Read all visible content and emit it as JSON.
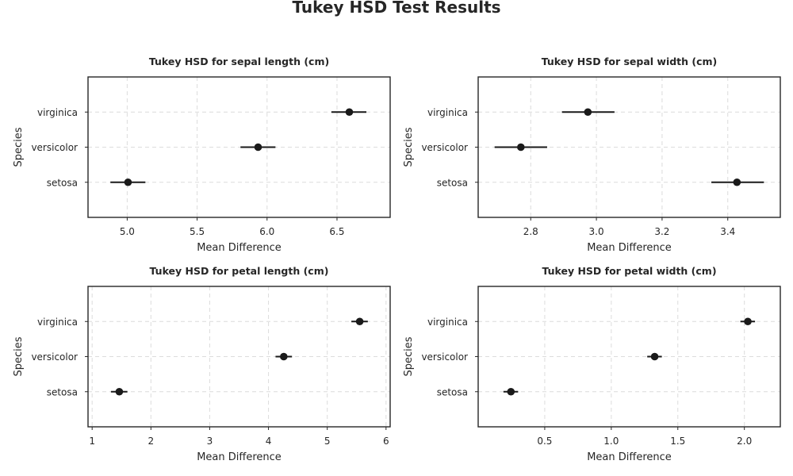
{
  "figure_title": "Tukey HSD Test Results",
  "chart_data": [
    {
      "type": "scatter",
      "title": "Tukey HSD for sepal length (cm)",
      "xlabel": "Mean Difference",
      "ylabel": "Species",
      "categories": [
        "setosa",
        "versicolor",
        "virginica"
      ],
      "means": [
        5.006,
        5.936,
        6.588
      ],
      "ci_low": [
        4.88,
        5.81,
        6.46
      ],
      "ci_high": [
        5.13,
        6.06,
        6.71
      ],
      "xlim": [
        4.72,
        6.88
      ],
      "xticks": [
        5.0,
        5.5,
        6.0,
        6.5
      ],
      "xtick_labels": [
        "5.0",
        "5.5",
        "6.0",
        "6.5"
      ],
      "grid": true
    },
    {
      "type": "scatter",
      "title": "Tukey HSD for sepal width (cm)",
      "xlabel": "Mean Difference",
      "ylabel": "Species",
      "categories": [
        "setosa",
        "versicolor",
        "virginica"
      ],
      "means": [
        3.428,
        2.77,
        2.974
      ],
      "ci_low": [
        3.35,
        2.69,
        2.895
      ],
      "ci_high": [
        3.51,
        2.85,
        3.055
      ],
      "xlim": [
        2.64,
        3.56
      ],
      "xticks": [
        2.8,
        3.0,
        3.2,
        3.4
      ],
      "xtick_labels": [
        "2.8",
        "3.0",
        "3.2",
        "3.4"
      ],
      "grid": true
    },
    {
      "type": "scatter",
      "title": "Tukey HSD for petal length (cm)",
      "xlabel": "Mean Difference",
      "ylabel": "Species",
      "categories": [
        "setosa",
        "versicolor",
        "virginica"
      ],
      "means": [
        1.462,
        4.26,
        5.552
      ],
      "ci_low": [
        1.32,
        4.12,
        5.41
      ],
      "ci_high": [
        1.6,
        4.4,
        5.69
      ],
      "xlim": [
        0.93,
        6.07
      ],
      "xticks": [
        1,
        2,
        3,
        4,
        5,
        6
      ],
      "xtick_labels": [
        "1",
        "2",
        "3",
        "4",
        "5",
        "6"
      ],
      "grid": true
    },
    {
      "type": "scatter",
      "title": "Tukey HSD for petal width (cm)",
      "xlabel": "Mean Difference",
      "ylabel": "Species",
      "categories": [
        "setosa",
        "versicolor",
        "virginica"
      ],
      "means": [
        0.246,
        1.326,
        2.026
      ],
      "ci_low": [
        0.19,
        1.27,
        1.97
      ],
      "ci_high": [
        0.3,
        1.38,
        2.08
      ],
      "xlim": [
        0.0,
        2.27
      ],
      "xticks": [
        0.5,
        1.0,
        1.5,
        2.0
      ],
      "xtick_labels": [
        "0.5",
        "1.0",
        "1.5",
        "2.0"
      ],
      "grid": true
    }
  ]
}
